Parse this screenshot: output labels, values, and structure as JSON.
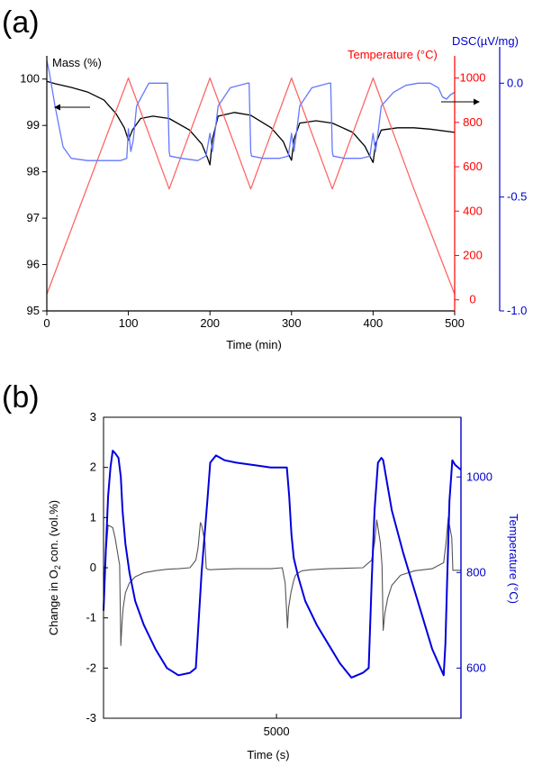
{
  "chart_data": [
    {
      "panel_label": "(a)",
      "type": "line",
      "xlabel": "Time (min)",
      "xlim": [
        0,
        500
      ],
      "xticks": [
        0,
        100,
        200,
        300,
        400,
        500
      ],
      "axes": {
        "mass": {
          "label": "Mass (%)",
          "ylim": [
            95,
            100.5
          ],
          "ticks": [
            95,
            96,
            97,
            98,
            99,
            100
          ],
          "color": "#000000"
        },
        "temperature": {
          "label": "Temperature (°C)",
          "ylim": [
            -50,
            1100
          ],
          "ticks": [
            0,
            200,
            400,
            600,
            800,
            1000
          ],
          "color": "#ff0000"
        },
        "dsc": {
          "label": "DSC(µV/mg)",
          "ylim": [
            -1.0,
            0.12
          ],
          "ticks": [
            "0.0",
            "-0.5",
            "-1.0"
          ],
          "tick_values": [
            0.0,
            -0.5,
            -1.0
          ],
          "color": "#0000cc"
        }
      },
      "series": [
        {
          "axis": "mass",
          "color": "#000000",
          "x": [
            0,
            10,
            30,
            50,
            70,
            85,
            95,
            100,
            105,
            115,
            130,
            150,
            175,
            190,
            197,
            200,
            203,
            210,
            230,
            250,
            275,
            290,
            297,
            300,
            303,
            310,
            330,
            350,
            375,
            390,
            397,
            400,
            403,
            410,
            430,
            450,
            470,
            500
          ],
          "y": [
            99.95,
            99.9,
            99.82,
            99.72,
            99.55,
            99.25,
            98.95,
            98.68,
            98.9,
            99.15,
            99.2,
            99.15,
            98.9,
            98.6,
            98.3,
            98.15,
            98.7,
            99.2,
            99.28,
            99.22,
            98.95,
            98.65,
            98.35,
            98.25,
            98.7,
            99.05,
            99.1,
            99.05,
            98.85,
            98.55,
            98.3,
            98.2,
            98.6,
            98.9,
            98.95,
            98.95,
            98.92,
            98.85
          ]
        },
        {
          "axis": "temperature",
          "color": "#ff6666",
          "x": [
            0,
            100,
            150,
            200,
            250,
            300,
            350,
            400,
            450,
            500
          ],
          "y": [
            25,
            1000,
            500,
            1000,
            500,
            1000,
            500,
            1000,
            500,
            25
          ]
        },
        {
          "axis": "dsc",
          "color": "#6677ff",
          "x": [
            0,
            3,
            10,
            20,
            30,
            50,
            70,
            90,
            98,
            100,
            103,
            106,
            110,
            125,
            145,
            148,
            149,
            150,
            151,
            165,
            185,
            195,
            200,
            203,
            206,
            210,
            225,
            246,
            248,
            249,
            250,
            251,
            265,
            285,
            296,
            300,
            303,
            306,
            310,
            325,
            346,
            348,
            349,
            350,
            351,
            365,
            385,
            396,
            400,
            403,
            406,
            410,
            425,
            440,
            455,
            470,
            480,
            485,
            490,
            495,
            500
          ],
          "y": [
            0.1,
            0.05,
            -0.1,
            -0.28,
            -0.33,
            -0.34,
            -0.34,
            -0.34,
            -0.33,
            -0.2,
            -0.3,
            -0.25,
            -0.1,
            0.0,
            0.0,
            0.0,
            -0.15,
            -0.3,
            -0.32,
            -0.33,
            -0.34,
            -0.32,
            -0.22,
            -0.3,
            -0.22,
            -0.1,
            -0.02,
            0.0,
            0.0,
            -0.15,
            -0.3,
            -0.32,
            -0.33,
            -0.33,
            -0.32,
            -0.22,
            -0.3,
            -0.22,
            -0.1,
            -0.02,
            0.0,
            0.0,
            -0.15,
            -0.3,
            -0.32,
            -0.33,
            -0.33,
            -0.32,
            -0.22,
            -0.3,
            -0.22,
            -0.1,
            -0.04,
            -0.01,
            0.0,
            0.0,
            -0.02,
            -0.06,
            -0.07,
            -0.05,
            -0.04
          ]
        }
      ]
    },
    {
      "panel_label": "(b)",
      "type": "line",
      "xlabel": "Time (s)",
      "xlim": [
        2000,
        8200
      ],
      "xticks": [
        5000
      ],
      "axes": {
        "o2": {
          "label": "Change in O2 con. (vol.%)",
          "label_main": "Change in O",
          "label_sub": "2",
          "label_tail": " con. (vol.%)",
          "ylim": [
            -3,
            3
          ],
          "ticks": [
            -3,
            -2,
            -1,
            0,
            1,
            2,
            3
          ],
          "color": "#000000"
        },
        "temperature": {
          "label": "Temperature (°C)",
          "ylim": [
            495,
            1125
          ],
          "ticks": [
            600,
            800,
            1000
          ],
          "color": "#0000cc"
        }
      },
      "series": [
        {
          "axis": "o2",
          "color": "#555555",
          "x": [
            2000,
            2030,
            2080,
            2160,
            2200,
            2280,
            2300,
            2320,
            2340,
            2380,
            2450,
            2550,
            2700,
            2900,
            3100,
            3300,
            3500,
            3600,
            3640,
            3680,
            3700,
            3760,
            3780,
            3800,
            3850,
            4000,
            4300,
            4600,
            4900,
            5100,
            5150,
            5190,
            5210,
            5250,
            5280,
            5300,
            5330,
            5380,
            5450,
            5600,
            5900,
            6200,
            6500,
            6650,
            6700,
            6740,
            6760,
            6800,
            6830,
            6850,
            6880,
            6930,
            7000,
            7150,
            7400,
            7700,
            7900,
            7940,
            7980,
            8000,
            8040,
            8060,
            8100,
            8200
          ],
          "y": [
            -0.5,
            0.1,
            0.85,
            0.8,
            0.6,
            0.05,
            -1.55,
            -1.1,
            -0.8,
            -0.5,
            -0.3,
            -0.18,
            -0.1,
            -0.06,
            -0.03,
            -0.02,
            0.0,
            0.15,
            0.4,
            0.9,
            0.85,
            0.5,
            0.0,
            -0.03,
            -0.04,
            -0.03,
            -0.02,
            -0.02,
            -0.02,
            0.0,
            -0.3,
            -1.2,
            -0.8,
            -0.5,
            -0.35,
            -0.25,
            -0.15,
            -0.1,
            -0.06,
            -0.04,
            -0.02,
            -0.01,
            0.0,
            0.15,
            0.5,
            0.95,
            0.8,
            0.5,
            0.05,
            -1.25,
            -0.9,
            -0.6,
            -0.35,
            -0.15,
            -0.06,
            -0.02,
            0.1,
            0.5,
            1.0,
            0.85,
            0.6,
            -0.05,
            -0.05,
            -0.05
          ]
        },
        {
          "axis": "temperature",
          "color": "#0000dd",
          "x": [
            2000,
            2040,
            2080,
            2120,
            2160,
            2200,
            2260,
            2300,
            2330,
            2380,
            2450,
            2550,
            2700,
            2900,
            3100,
            3300,
            3500,
            3600,
            3700,
            3800,
            3850,
            3950,
            4100,
            4300,
            4600,
            4900,
            5180,
            5220,
            5260,
            5300,
            5380,
            5500,
            5700,
            5900,
            6100,
            6300,
            6500,
            6600,
            6650,
            6700,
            6760,
            6820,
            6850,
            6900,
            7000,
            7200,
            7450,
            7700,
            7900,
            7930,
            7960,
            8000,
            8050,
            8100,
            8200
          ],
          "y": [
            720,
            850,
            960,
            1020,
            1055,
            1050,
            1040,
            1000,
            930,
            860,
            800,
            740,
            690,
            640,
            600,
            585,
            590,
            600,
            800,
            950,
            1030,
            1045,
            1035,
            1030,
            1025,
            1020,
            1020,
            960,
            880,
            830,
            790,
            740,
            690,
            650,
            610,
            580,
            590,
            600,
            780,
            930,
            1030,
            1040,
            1035,
            1000,
            930,
            840,
            740,
            640,
            585,
            650,
            780,
            950,
            1035,
            1025,
            1015
          ]
        }
      ]
    }
  ]
}
